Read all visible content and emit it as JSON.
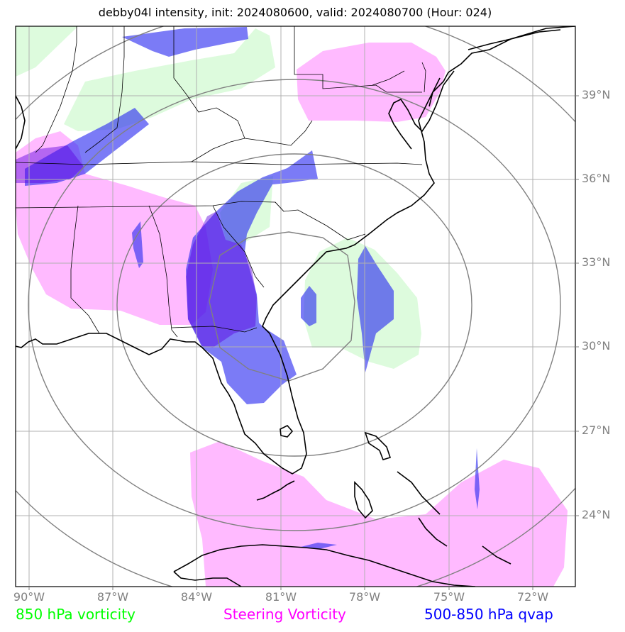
{
  "title": "debby04l intensity, init: 2024080600, valid: 2024080700 (Hour: 024)",
  "map": {
    "lat_labels": [
      "39°N",
      "36°N",
      "33°N",
      "30°N",
      "27°N",
      "24°N"
    ],
    "lon_labels": [
      "90°W",
      "87°W",
      "84°W",
      "81°W",
      "78°W",
      "75°W",
      "72°W"
    ],
    "colors": {
      "vorticity_850": "#00ff00",
      "steering_vorticity": "#ff00ff",
      "qvap_500_850": "#0000ff",
      "grid": "#b0b0b0",
      "range_rings": "#808080",
      "coastline": "#000000"
    }
  },
  "legend": {
    "vorticity_850": "850 hPa vorticity",
    "steering_vorticity": "Steering Vorticity",
    "qvap_500_850": "500-850 hPa qvap"
  }
}
